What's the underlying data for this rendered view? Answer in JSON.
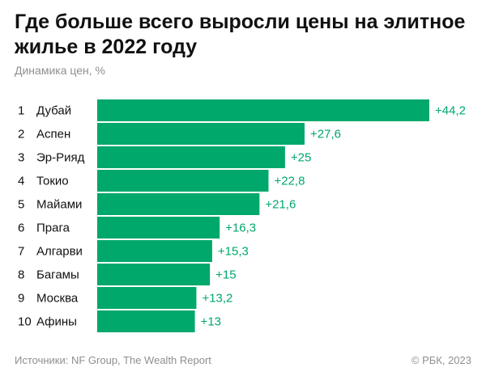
{
  "header": {
    "title": "Где больше всего выросли цены на элитное жилье в 2022 году",
    "subtitle": "Динамика цен, %"
  },
  "footer": {
    "source": "Источники: NF Group, The Wealth Report",
    "copyright": "© РБК, 2023"
  },
  "colors": {
    "bar": "#00a86b",
    "value_text": "#00a86b",
    "label_text": "#111111"
  },
  "chart_data": {
    "type": "bar",
    "orientation": "horizontal",
    "title": "Где больше всего выросли цены на элитное жилье в 2022 году",
    "subtitle": "Динамика цен, %",
    "ranks": [
      "1",
      "2",
      "3",
      "4",
      "5",
      "6",
      "7",
      "8",
      "9",
      "10"
    ],
    "categories": [
      "Дубай",
      "Аспен",
      "Эр-Рияд",
      "Токио",
      "Майами",
      "Прага",
      "Алгарви",
      "Багамы",
      "Москва",
      "Афины"
    ],
    "values": [
      44.2,
      27.6,
      25,
      22.8,
      21.6,
      16.3,
      15.3,
      15,
      13.2,
      13
    ],
    "value_labels": [
      "+44,2",
      "+27,6",
      "+25",
      "+22,8",
      "+21,6",
      "+16,3",
      "+15,3",
      "+15",
      "+13,2",
      "+13"
    ],
    "xlim": [
      0,
      44.2
    ],
    "grid": false,
    "legend": "none"
  }
}
